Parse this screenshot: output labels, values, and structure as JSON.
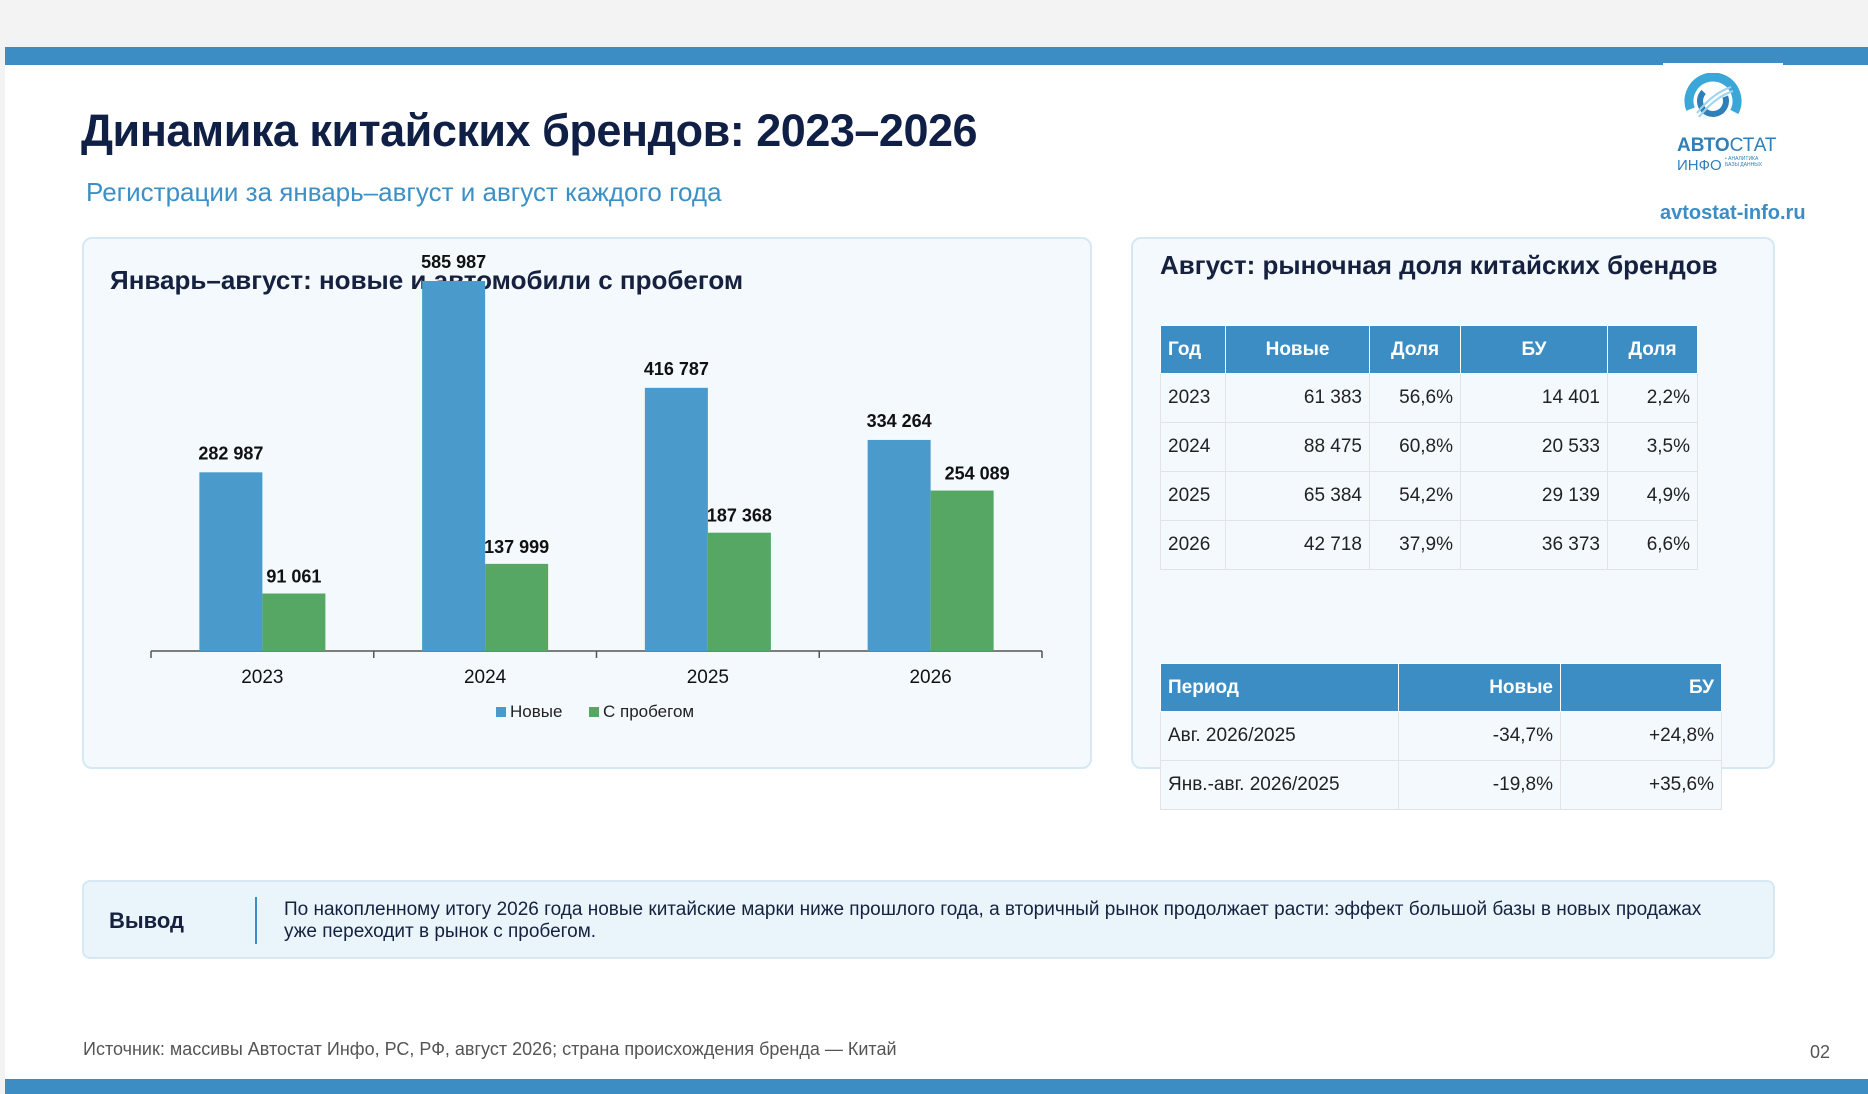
{
  "header": {
    "title": "Динамика китайских брендов: 2023–2026",
    "subtitle": "Регистрации за январь–август и август каждого года"
  },
  "logo": {
    "brand_bold": "АВТО",
    "brand_thin": "СТАТ",
    "brand_line2": "ИНФО",
    "tagline_1": "• АНАЛИТИКА",
    "tagline_2": "БАЗЫ ДАННЫХ",
    "icon": "autostat-logo-icon"
  },
  "site_link": "avtostat-info.ru",
  "left_panel": {
    "title": "Январь–август: новые и автомобили с пробегом"
  },
  "chart_data": {
    "type": "bar",
    "categories": [
      "2023",
      "2024",
      "2025",
      "2026"
    ],
    "series": [
      {
        "name": "Новые",
        "values": [
          282987,
          585987,
          416787,
          334264
        ],
        "labels": [
          "282 987",
          "585 987",
          "416 787",
          "334 264"
        ],
        "color": "#4a9acc"
      },
      {
        "name": "С пробегом",
        "values": [
          91061,
          137999,
          187368,
          254089
        ],
        "labels": [
          "91 061",
          "137 999",
          "187 368",
          "254 089"
        ],
        "color": "#55a763"
      }
    ],
    "legend_position": "bottom",
    "grid": false
  },
  "right_panel": {
    "title": "Август: рыночная доля китайских брендов",
    "share_table": {
      "headers": [
        "Год",
        "Новые",
        "Доля",
        "БУ",
        "Доля"
      ],
      "rows": [
        [
          "2023",
          "61 383",
          "56,6%",
          "14 401",
          "2,2%"
        ],
        [
          "2024",
          "88 475",
          "60,8%",
          "20 533",
          "3,5%"
        ],
        [
          "2025",
          "65 384",
          "54,2%",
          "29 139",
          "4,9%"
        ],
        [
          "2026",
          "42 718",
          "37,9%",
          "36 373",
          "6,6%"
        ]
      ]
    },
    "period_table": {
      "headers": [
        "Период",
        "Новые",
        "БУ"
      ],
      "rows": [
        [
          "Авг. 2026/2025",
          "-34,7%",
          "+24,8%"
        ],
        [
          "Янв.-авг. 2026/2025",
          "-19,8%",
          "+35,6%"
        ]
      ]
    }
  },
  "conclusion": {
    "label": "Вывод",
    "text": "По накопленному итогу 2026 года новые китайские марки ниже прошлого года, а вторичный рынок продолжает расти: эффект большой базы в новых продажах уже переходит в рынок с пробегом."
  },
  "footer": {
    "source": "Источник: массивы Автостат Инфо, РС, РФ, август 2026; страна происхождения бренда — Китай",
    "page_number": "02"
  },
  "colors": {
    "accent": "#3b8dc4",
    "title": "#0f1f45",
    "bar_new": "#4a9acc",
    "bar_used": "#55a763"
  }
}
